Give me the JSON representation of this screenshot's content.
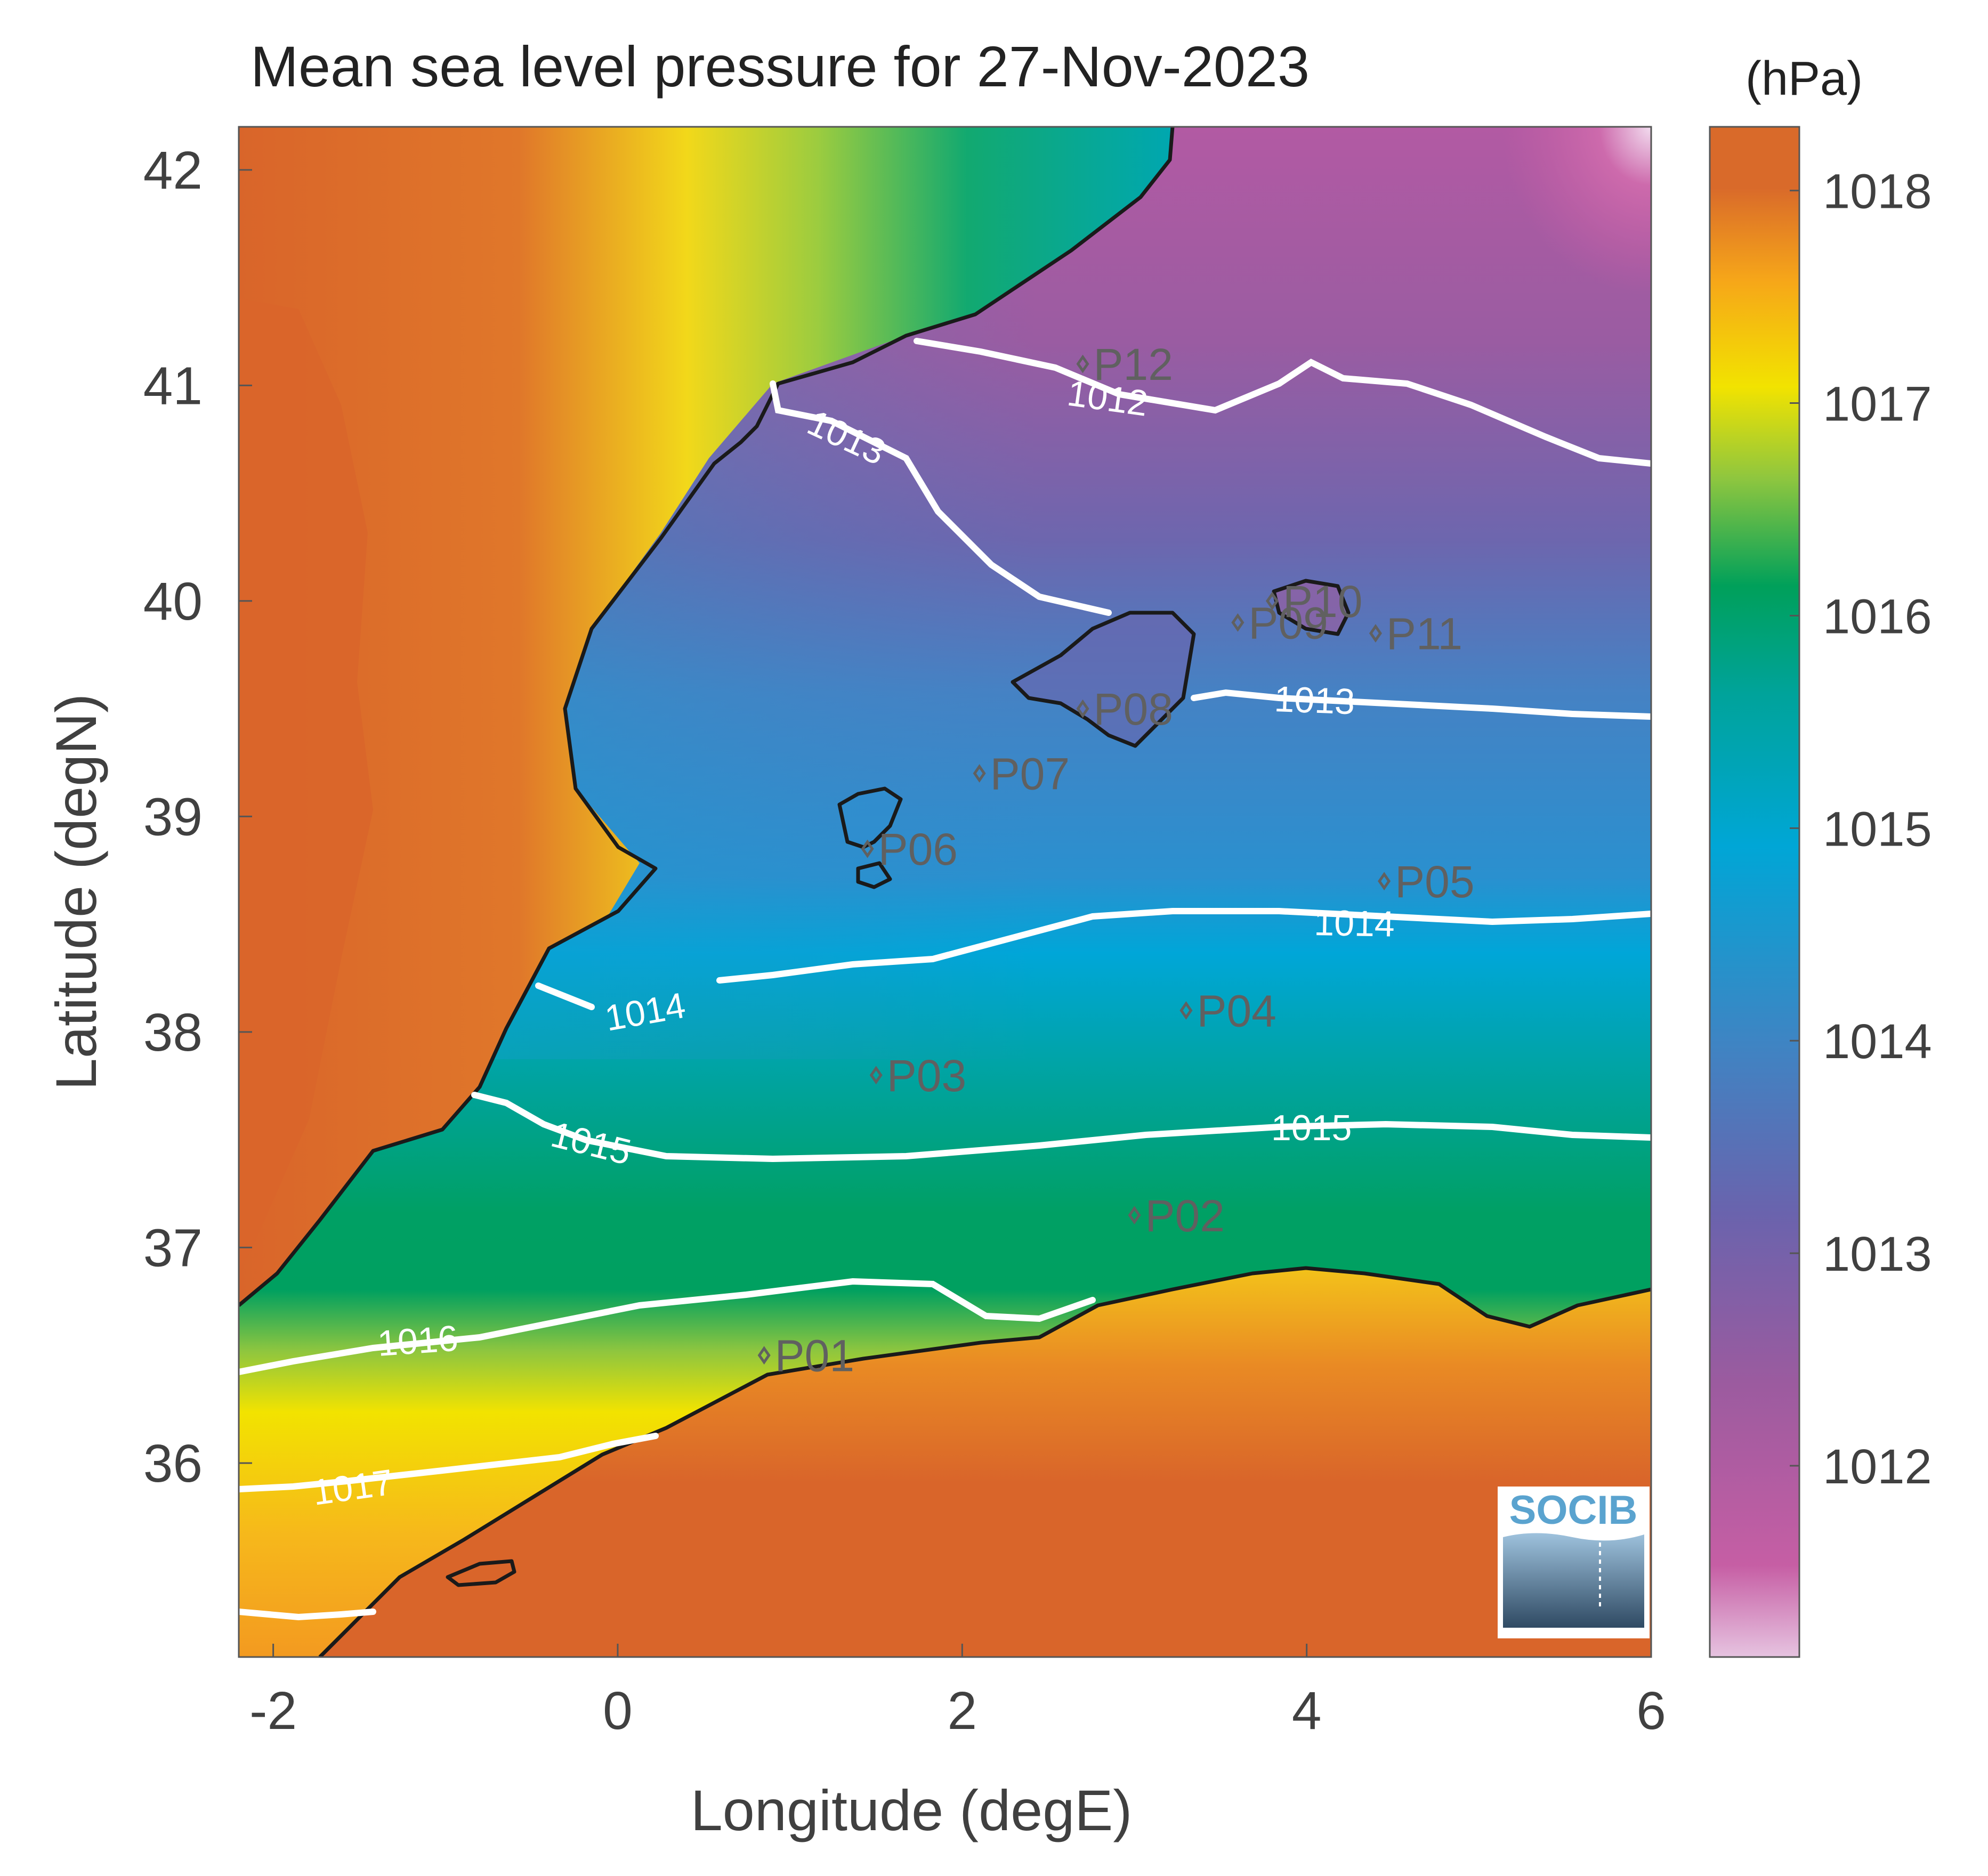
{
  "title": "Mean sea level pressure for 27-Nov-2023",
  "colorbar": {
    "unit": "(hPa)",
    "ticks": [
      "1012",
      "1013",
      "1014",
      "1015",
      "1016",
      "1017",
      "1018"
    ],
    "range": [
      1011.1,
      1018.3
    ],
    "colors": [
      "#e6c3e0",
      "#c65ea4",
      "#9b5b9f",
      "#6a63ad",
      "#3f84c3",
      "#00a6d6",
      "#00a39a",
      "#00a05a",
      "#8ec63f",
      "#f2e300",
      "#f6a619",
      "#d96a2a"
    ]
  },
  "axes": {
    "xlabel": "Longitude (degE)",
    "ylabel": "Latitude (degN)",
    "xticks": [
      "-2",
      "0",
      "2",
      "4",
      "6"
    ],
    "yticks": [
      "36",
      "37",
      "38",
      "39",
      "40",
      "41",
      "42"
    ],
    "xlim": [
      -2.2,
      6.0
    ],
    "ylim": [
      35.1,
      42.2
    ]
  },
  "contours": [
    {
      "label": "1012",
      "level": 1012
    },
    {
      "label": "1013",
      "level": 1013
    },
    {
      "label": "1013",
      "level": 1013
    },
    {
      "label": "1014",
      "level": 1014
    },
    {
      "label": "1014",
      "level": 1014
    },
    {
      "label": "1015",
      "level": 1015
    },
    {
      "label": "1015",
      "level": 1015
    },
    {
      "label": "1016",
      "level": 1016
    },
    {
      "label": "1017",
      "level": 1017
    }
  ],
  "points": [
    {
      "label": "P01",
      "lon": 0.85,
      "lat": 36.5
    },
    {
      "label": "P02",
      "lon": 3.0,
      "lat": 37.15
    },
    {
      "label": "P03",
      "lon": 1.5,
      "lat": 37.8
    },
    {
      "label": "P04",
      "lon": 3.3,
      "lat": 38.1
    },
    {
      "label": "P05",
      "lon": 4.45,
      "lat": 38.7
    },
    {
      "label": "P06",
      "lon": 1.45,
      "lat": 38.85
    },
    {
      "label": "P07",
      "lon": 2.1,
      "lat": 39.2
    },
    {
      "label": "P08",
      "lon": 2.7,
      "lat": 39.5
    },
    {
      "label": "P09",
      "lon": 3.6,
      "lat": 39.9
    },
    {
      "label": "P10",
      "lon": 3.8,
      "lat": 40.0
    },
    {
      "label": "P11",
      "lon": 4.4,
      "lat": 39.85
    },
    {
      "label": "P12",
      "lon": 2.7,
      "lat": 41.1
    }
  ],
  "logo": {
    "text": "SOCIB"
  }
}
